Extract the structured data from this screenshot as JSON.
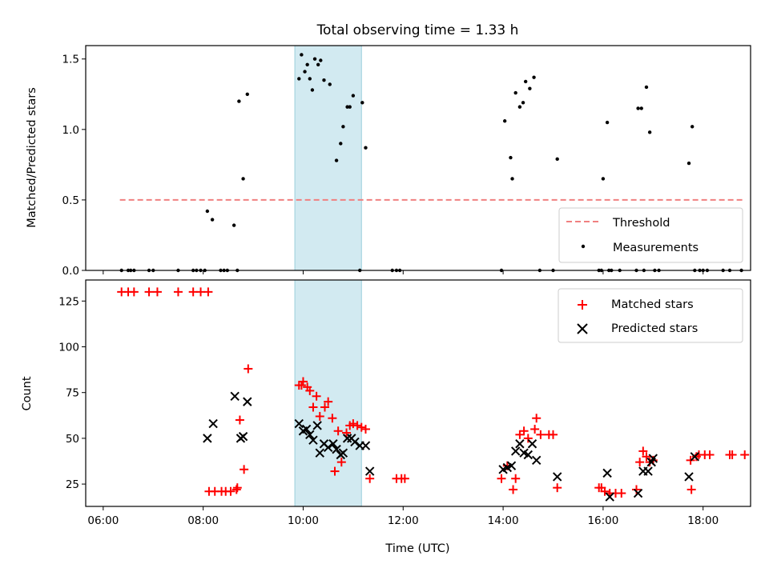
{
  "chart_data": {
    "title": "Total observing time = 1.33 h",
    "xlabel": "Time (UTC)",
    "x_unit": "hours UTC",
    "xlim": [
      "06:00",
      "19:00"
    ],
    "x_ticks": [
      "06:00",
      "08:00",
      "10:00",
      "12:00",
      "14:00",
      "16:00",
      "18:00"
    ],
    "highlight_span": {
      "from": "09:50",
      "to": "11:10",
      "color": "#add8e6"
    },
    "panels": [
      {
        "type": "scatter",
        "ylabel": "Matched/Predicted stars",
        "ylim": [
          0,
          1.6
        ],
        "y_ticks": [
          "0.0",
          "0.5",
          "1.0",
          "1.5"
        ],
        "grid": false,
        "legend_position": "lower-right",
        "threshold": {
          "name": "Threshold",
          "value": 0.5,
          "x_from": "06:20",
          "x_to": "18:50",
          "color": "#f08080",
          "style": "dashed"
        },
        "series": [
          {
            "name": "Measurements",
            "color": "#000000",
            "marker": "dot",
            "points": [
              [
                "06:22",
                0
              ],
              [
                "06:30",
                0
              ],
              [
                "06:33",
                0
              ],
              [
                "06:37",
                0
              ],
              [
                "06:55",
                0
              ],
              [
                "07:00",
                0
              ],
              [
                "07:30",
                0
              ],
              [
                "07:48",
                0
              ],
              [
                "07:52",
                0
              ],
              [
                "07:57",
                0
              ],
              [
                "08:02",
                0
              ],
              [
                "08:05",
                0.42
              ],
              [
                "08:11",
                0.36
              ],
              [
                "08:21",
                0
              ],
              [
                "08:25",
                0
              ],
              [
                "08:29",
                0
              ],
              [
                "08:37",
                0.32
              ],
              [
                "08:41",
                0
              ],
              [
                "08:43",
                1.2
              ],
              [
                "08:48",
                0.65
              ],
              [
                "08:53",
                1.25
              ],
              [
                "09:55",
                1.36
              ],
              [
                "09:58",
                1.53
              ],
              [
                "10:02",
                1.41
              ],
              [
                "10:05",
                1.46
              ],
              [
                "10:08",
                1.36
              ],
              [
                "10:11",
                1.28
              ],
              [
                "10:14",
                1.5
              ],
              [
                "10:18",
                1.46
              ],
              [
                "10:21",
                1.49
              ],
              [
                "10:25",
                1.35
              ],
              [
                "10:32",
                1.32
              ],
              [
                "10:40",
                0.78
              ],
              [
                "10:45",
                0.9
              ],
              [
                "10:48",
                1.02
              ],
              [
                "10:53",
                1.16
              ],
              [
                "10:56",
                1.16
              ],
              [
                "11:00",
                1.24
              ],
              [
                "11:08",
                0
              ],
              [
                "11:11",
                1.19
              ],
              [
                "11:15",
                0.87
              ],
              [
                "11:47",
                0
              ],
              [
                "11:52",
                0
              ],
              [
                "11:56",
                0
              ],
              [
                "13:58",
                0
              ],
              [
                "14:02",
                1.06
              ],
              [
                "14:09",
                0.8
              ],
              [
                "14:11",
                0.65
              ],
              [
                "14:15",
                1.26
              ],
              [
                "14:20",
                1.16
              ],
              [
                "14:24",
                1.19
              ],
              [
                "14:27",
                1.34
              ],
              [
                "14:32",
                1.29
              ],
              [
                "14:37",
                1.37
              ],
              [
                "14:44",
                0
              ],
              [
                "15:00",
                0
              ],
              [
                "15:05",
                0.79
              ],
              [
                "15:55",
                0
              ],
              [
                "15:58",
                0
              ],
              [
                "16:00",
                0.65
              ],
              [
                "16:05",
                1.05
              ],
              [
                "16:07",
                0
              ],
              [
                "16:10",
                0
              ],
              [
                "16:20",
                0
              ],
              [
                "16:40",
                0
              ],
              [
                "16:42",
                1.15
              ],
              [
                "16:46",
                1.15
              ],
              [
                "16:49",
                0
              ],
              [
                "16:52",
                1.3
              ],
              [
                "16:56",
                0.98
              ],
              [
                "17:02",
                0
              ],
              [
                "17:07",
                0
              ],
              [
                "17:43",
                0.76
              ],
              [
                "17:47",
                1.02
              ],
              [
                "17:50",
                0
              ],
              [
                "17:56",
                0
              ],
              [
                "18:00",
                0
              ],
              [
                "18:05",
                0
              ],
              [
                "18:24",
                0
              ],
              [
                "18:32",
                0
              ],
              [
                "18:46",
                0
              ]
            ]
          }
        ]
      },
      {
        "type": "scatter",
        "ylabel": "Count",
        "ylim": [
          12.5,
          137
        ],
        "y_ticks": [
          "25",
          "50",
          "75",
          "100",
          "125"
        ],
        "grid": false,
        "legend_position": "upper-right",
        "series": [
          {
            "name": "Matched stars",
            "color": "#ff0000",
            "marker": "plus",
            "points": [
              [
                "06:22",
                130
              ],
              [
                "06:30",
                130
              ],
              [
                "06:37",
                130
              ],
              [
                "06:55",
                130
              ],
              [
                "07:05",
                130
              ],
              [
                "07:30",
                130
              ],
              [
                "07:48",
                130
              ],
              [
                "07:57",
                130
              ],
              [
                "08:06",
                130
              ],
              [
                "08:07",
                21
              ],
              [
                "08:14",
                21
              ],
              [
                "08:22",
                21
              ],
              [
                "08:27",
                21
              ],
              [
                "08:33",
                21
              ],
              [
                "08:40",
                22
              ],
              [
                "08:41",
                23
              ],
              [
                "08:44",
                60
              ],
              [
                "08:49",
                33
              ],
              [
                "08:54",
                88
              ],
              [
                "09:55",
                79
              ],
              [
                "09:58",
                79
              ],
              [
                "10:00",
                81
              ],
              [
                "10:05",
                78
              ],
              [
                "10:08",
                76
              ],
              [
                "10:12",
                67
              ],
              [
                "10:16",
                73
              ],
              [
                "10:20",
                62
              ],
              [
                "10:26",
                67
              ],
              [
                "10:30",
                70
              ],
              [
                "10:35",
                61
              ],
              [
                "10:38",
                32
              ],
              [
                "10:42",
                54
              ],
              [
                "10:46",
                37
              ],
              [
                "10:52",
                53
              ],
              [
                "10:56",
                57
              ],
              [
                "11:00",
                58
              ],
              [
                "11:05",
                57
              ],
              [
                "11:10",
                56
              ],
              [
                "11:15",
                55
              ],
              [
                "11:20",
                28
              ],
              [
                "11:52",
                28
              ],
              [
                "11:58",
                28
              ],
              [
                "12:02",
                28
              ],
              [
                "13:58",
                28
              ],
              [
                "14:05",
                35
              ],
              [
                "14:12",
                22
              ],
              [
                "14:15",
                28
              ],
              [
                "14:20",
                52
              ],
              [
                "14:25",
                54
              ],
              [
                "14:30",
                50
              ],
              [
                "14:38",
                55
              ],
              [
                "14:40",
                61
              ],
              [
                "14:45",
                52
              ],
              [
                "14:55",
                52
              ],
              [
                "15:00",
                52
              ],
              [
                "15:05",
                23
              ],
              [
                "15:55",
                23
              ],
              [
                "15:58",
                23
              ],
              [
                "16:02",
                21
              ],
              [
                "16:08",
                20
              ],
              [
                "16:15",
                20
              ],
              [
                "16:22",
                20
              ],
              [
                "16:40",
                22
              ],
              [
                "16:44",
                37
              ],
              [
                "16:48",
                43
              ],
              [
                "16:52",
                40
              ],
              [
                "16:56",
                37
              ],
              [
                "17:00",
                38
              ],
              [
                "17:45",
                38
              ],
              [
                "17:46",
                22
              ],
              [
                "17:52",
                40
              ],
              [
                "17:55",
                41
              ],
              [
                "18:02",
                41
              ],
              [
                "18:08",
                41
              ],
              [
                "18:32",
                41
              ],
              [
                "18:35",
                41
              ],
              [
                "18:50",
                41
              ]
            ]
          },
          {
            "name": "Predicted stars",
            "color": "#000000",
            "marker": "x",
            "points": [
              [
                "08:05",
                50
              ],
              [
                "08:12",
                58
              ],
              [
                "08:38",
                73
              ],
              [
                "08:45",
                50
              ],
              [
                "08:48",
                51
              ],
              [
                "08:53",
                70
              ],
              [
                "09:55",
                58
              ],
              [
                "10:00",
                54
              ],
              [
                "10:04",
                55
              ],
              [
                "10:08",
                52
              ],
              [
                "10:12",
                49
              ],
              [
                "10:17",
                57
              ],
              [
                "10:20",
                42
              ],
              [
                "10:25",
                47
              ],
              [
                "10:30",
                45
              ],
              [
                "10:36",
                47
              ],
              [
                "10:40",
                44
              ],
              [
                "10:45",
                41
              ],
              [
                "10:48",
                42
              ],
              [
                "10:53",
                50
              ],
              [
                "10:58",
                50
              ],
              [
                "11:02",
                48
              ],
              [
                "11:08",
                46
              ],
              [
                "11:15",
                46
              ],
              [
                "11:20",
                32
              ],
              [
                "14:00",
                33
              ],
              [
                "14:05",
                34
              ],
              [
                "14:10",
                35
              ],
              [
                "14:15",
                43
              ],
              [
                "14:20",
                47
              ],
              [
                "14:25",
                42
              ],
              [
                "14:30",
                41
              ],
              [
                "14:35",
                47
              ],
              [
                "14:40",
                38
              ],
              [
                "15:05",
                29
              ],
              [
                "16:05",
                31
              ],
              [
                "16:08",
                18
              ],
              [
                "16:42",
                20
              ],
              [
                "16:48",
                32
              ],
              [
                "16:54",
                32
              ],
              [
                "16:58",
                37
              ],
              [
                "17:00",
                39
              ],
              [
                "17:43",
                29
              ],
              [
                "17:50",
                40
              ]
            ]
          }
        ]
      }
    ]
  }
}
